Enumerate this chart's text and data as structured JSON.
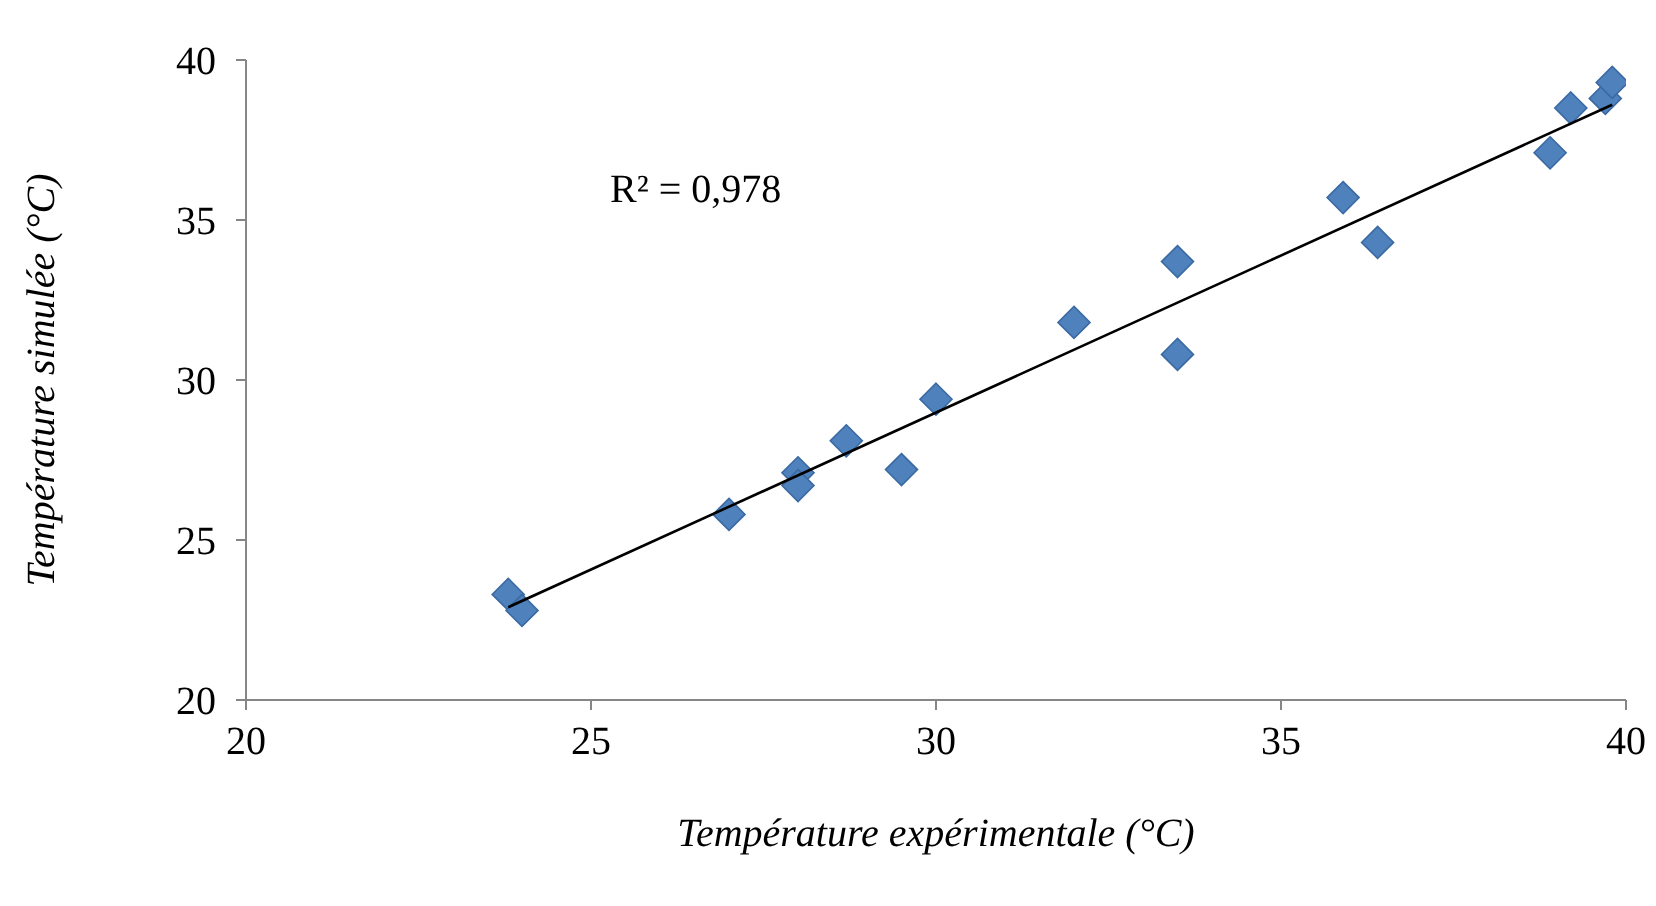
{
  "chart_data": {
    "type": "scatter",
    "xlabel": "Température expérimentale (°C)",
    "ylabel": "Température simulée (°C)",
    "annotations": [
      "R² = 0,978"
    ],
    "series": [
      {
        "color": "#4f81bd",
        "marker": "diamond",
        "x": [
          23.8,
          24.0,
          27.0,
          28.0,
          28.0,
          28.7,
          29.5,
          30.0,
          32.0,
          33.5,
          33.5,
          35.9,
          36.4,
          38.9,
          39.2,
          39.7,
          39.8
        ],
        "values": [
          23.3,
          22.8,
          25.8,
          27.1,
          26.7,
          28.1,
          27.2,
          29.4,
          31.8,
          33.7,
          30.8,
          35.7,
          34.3,
          37.1,
          38.5,
          38.8,
          39.3
        ]
      },
      {
        "type": "line",
        "color": "#000000",
        "marker": "none",
        "line_style": "solid",
        "x": [
          23.8,
          39.8
        ],
        "values": [
          22.9,
          38.6
        ]
      }
    ],
    "xlim": [
      20,
      40
    ],
    "xticks": [
      20,
      25,
      30,
      35,
      40
    ],
    "ylim": [
      20,
      40
    ],
    "yticks": [
      20,
      25,
      30,
      35,
      40
    ],
    "grid": false,
    "legend": false
  }
}
